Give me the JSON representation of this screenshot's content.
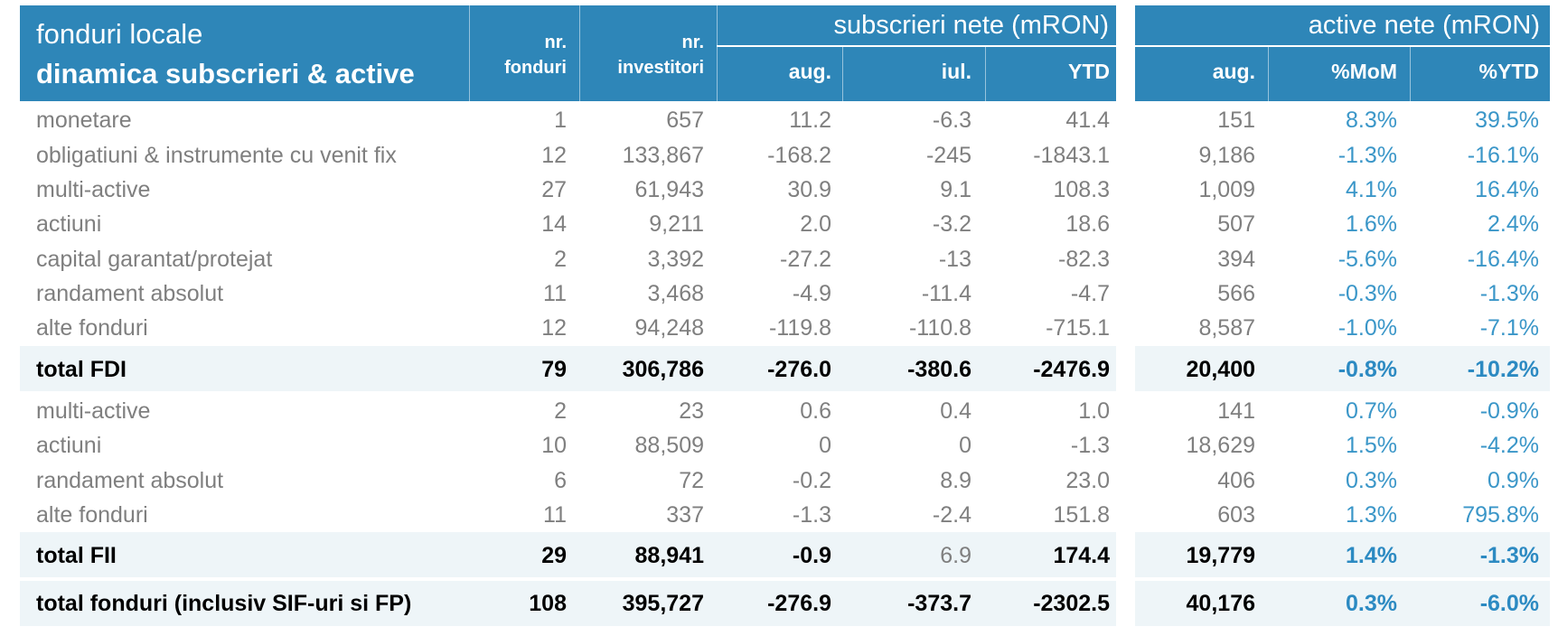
{
  "header": {
    "title_line1": "fonduri locale",
    "title_line2": "dinamica subscrieri & active",
    "funds_l1": "nr.",
    "funds_l2": "fonduri",
    "investors_l1": "nr.",
    "investors_l2": "investitori",
    "subs_group": "subscrieri nete (mRON)",
    "assets_group": "active nete (mRON)",
    "sub_cols": [
      "aug.",
      "iul.",
      "YTD"
    ],
    "asset_cols": [
      "aug.",
      "%MoM",
      "%YTD"
    ]
  },
  "rows": [
    {
      "name": "monetare",
      "funds": "1",
      "investors": "657",
      "aug": "11.2",
      "iul": "-6.3",
      "ytd": "41.4",
      "assets": "151",
      "mom": "8.3%",
      "pytd": "39.5%"
    },
    {
      "name": "obligatiuni & instrumente cu venit fix",
      "funds": "12",
      "investors": "133,867",
      "aug": "-168.2",
      "iul": "-245",
      "ytd": "-1843.1",
      "assets": "9,186",
      "mom": "-1.3%",
      "pytd": "-16.1%"
    },
    {
      "name": "multi-active",
      "funds": "27",
      "investors": "61,943",
      "aug": "30.9",
      "iul": "9.1",
      "ytd": "108.3",
      "assets": "1,009",
      "mom": "4.1%",
      "pytd": "16.4%"
    },
    {
      "name": "actiuni",
      "funds": "14",
      "investors": "9,211",
      "aug": "2.0",
      "iul": "-3.2",
      "ytd": "18.6",
      "assets": "507",
      "mom": "1.6%",
      "pytd": "2.4%"
    },
    {
      "name": "capital garantat/protejat",
      "funds": "2",
      "investors": "3,392",
      "aug": "-27.2",
      "iul": "-13",
      "ytd": "-82.3",
      "assets": "394",
      "mom": "-5.6%",
      "pytd": "-16.4%"
    },
    {
      "name": "randament absolut",
      "funds": "11",
      "investors": "3,468",
      "aug": "-4.9",
      "iul": "-11.4",
      "ytd": "-4.7",
      "assets": "566",
      "mom": "-0.3%",
      "pytd": "-1.3%"
    },
    {
      "name": "alte fonduri",
      "funds": "12",
      "investors": "94,248",
      "aug": "-119.8",
      "iul": "-110.8",
      "ytd": "-715.1",
      "assets": "8,587",
      "mom": "-1.0%",
      "pytd": "-7.1%"
    },
    {
      "name": "total FDI",
      "funds": "79",
      "investors": "306,786",
      "aug": "-276.0",
      "iul": "-380.6",
      "ytd": "-2476.9",
      "assets": "20,400",
      "mom": "-0.8%",
      "pytd": "-10.2%"
    },
    {
      "name": "multi-active",
      "funds": "2",
      "investors": "23",
      "aug": "0.6",
      "iul": "0.4",
      "ytd": "1.0",
      "assets": "141",
      "mom": "0.7%",
      "pytd": "-0.9%"
    },
    {
      "name": "actiuni",
      "funds": "10",
      "investors": "88,509",
      "aug": "0",
      "iul": "0",
      "ytd": "-1.3",
      "assets": "18,629",
      "mom": "1.5%",
      "pytd": "-4.2%"
    },
    {
      "name": "randament absolut",
      "funds": "6",
      "investors": "72",
      "aug": "-0.2",
      "iul": "8.9",
      "ytd": "23.0",
      "assets": "406",
      "mom": "0.3%",
      "pytd": "0.9%"
    },
    {
      "name": "alte fonduri",
      "funds": "11",
      "investors": "337",
      "aug": "-1.3",
      "iul": "-2.4",
      "ytd": "151.8",
      "assets": "603",
      "mom": "1.3%",
      "pytd": "795.8%"
    },
    {
      "name": "total FII",
      "funds": "29",
      "investors": "88,941",
      "aug": "-0.9",
      "iul": "6.9",
      "ytd": "174.4",
      "assets": "19,779",
      "mom": "1.4%",
      "pytd": "-1.3%"
    },
    {
      "name": "total fonduri (inclusiv SIF-uri si FP)",
      "funds": "108",
      "investors": "395,727",
      "aug": "-276.9",
      "iul": "-373.7",
      "ytd": "-2302.5",
      "assets": "40,176",
      "mom": "0.3%",
      "pytd": "-6.0%"
    }
  ],
  "colors": {
    "header_bg": "#2e86b8",
    "total_band": "#eef5f8",
    "text_gray": "#7f7f7f",
    "pct_blue": "#3a96c8",
    "total_text": "#000000"
  }
}
